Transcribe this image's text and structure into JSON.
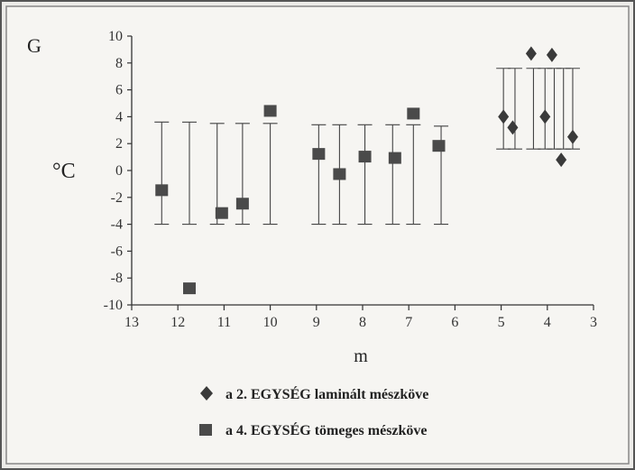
{
  "chart_data": {
    "type": "scatter",
    "panel_label": "G",
    "ylabel": "°C",
    "xlabel": "m",
    "xlim": [
      13,
      3
    ],
    "ylim": [
      -10,
      10
    ],
    "xticks": [
      13,
      12,
      11,
      10,
      9,
      8,
      7,
      6,
      5,
      4,
      3
    ],
    "yticks": [
      10,
      8,
      6,
      4,
      2,
      0,
      -2,
      -4,
      -6,
      -8,
      -10
    ],
    "grid": false,
    "legend_position": "bottom",
    "series": [
      {
        "name": "a 2. EGYSÉG laminált mészköve",
        "marker": "diamond",
        "color": "#3a3a3a",
        "x": [
          4.95,
          4.75,
          4.35,
          4.05,
          3.9,
          3.7,
          3.45
        ],
        "y": [
          4.0,
          3.2,
          8.7,
          4.0,
          8.6,
          0.8,
          2.5
        ]
      },
      {
        "name": "a 4. EGYSÉG tömeges mészköve",
        "marker": "square",
        "color": "#4a4a4a",
        "x": [
          12.35,
          11.75,
          11.05,
          10.6,
          10.0,
          8.95,
          8.5,
          7.95,
          7.3,
          6.9,
          6.35
        ],
        "y": [
          -1.5,
          -8.8,
          -3.2,
          -2.5,
          4.4,
          1.2,
          -0.3,
          1.0,
          0.9,
          4.2,
          1.8
        ]
      }
    ],
    "error_bars": [
      {
        "x": 12.35,
        "low": -4,
        "high": 3.6
      },
      {
        "x": 11.75,
        "low": -4,
        "high": 3.6
      },
      {
        "x": 11.15,
        "low": -4,
        "high": 3.5
      },
      {
        "x": 10.6,
        "low": -4,
        "high": 3.5
      },
      {
        "x": 10.0,
        "low": -4,
        "high": 3.5
      },
      {
        "x": 8.95,
        "low": -4,
        "high": 3.4
      },
      {
        "x": 8.5,
        "low": -4,
        "high": 3.4
      },
      {
        "x": 7.95,
        "low": -4,
        "high": 3.4
      },
      {
        "x": 7.35,
        "low": -4,
        "high": 3.4
      },
      {
        "x": 6.9,
        "low": -4,
        "high": 3.4
      },
      {
        "x": 6.3,
        "low": -4,
        "high": 3.3
      },
      {
        "x": 4.95,
        "low": 1.6,
        "high": 7.6
      },
      {
        "x": 4.7,
        "low": 1.6,
        "high": 7.6
      },
      {
        "x": 4.3,
        "low": 1.6,
        "high": 7.6
      },
      {
        "x": 4.05,
        "low": 1.6,
        "high": 7.6
      },
      {
        "x": 3.85,
        "low": 1.6,
        "high": 7.6
      },
      {
        "x": 3.65,
        "low": 1.6,
        "high": 7.6
      },
      {
        "x": 3.45,
        "low": 1.6,
        "high": 7.6
      }
    ]
  }
}
